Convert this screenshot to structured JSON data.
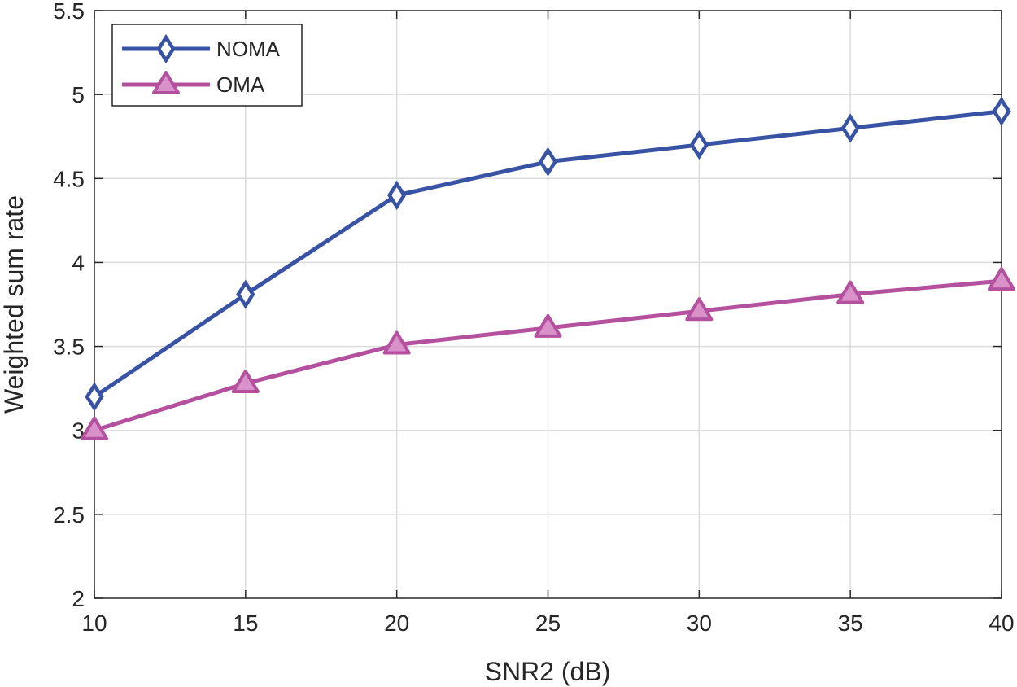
{
  "chart_data": {
    "type": "line",
    "title": "",
    "xlabel": "SNR2 (dB)",
    "ylabel": "Weighted sum rate",
    "x": [
      10,
      15,
      20,
      25,
      30,
      35,
      40
    ],
    "xlim": [
      10,
      40
    ],
    "ylim": [
      2,
      5.5
    ],
    "xticks": [
      10,
      15,
      20,
      25,
      30,
      35,
      40
    ],
    "yticks": [
      2,
      2.5,
      3,
      3.5,
      4,
      4.5,
      5,
      5.5
    ],
    "xtick_labels": [
      "10",
      "15",
      "20",
      "25",
      "30",
      "35",
      "40"
    ],
    "ytick_labels": [
      "2",
      "2.5",
      "3",
      "3.5",
      "4",
      "4.5",
      "5",
      "5.5"
    ],
    "grid": true,
    "legend_position": "top-left",
    "series": [
      {
        "name": "NOMA",
        "values": [
          3.2,
          3.81,
          4.4,
          4.6,
          4.7,
          4.8,
          4.9
        ],
        "color": "#3853a4",
        "marker": "diamond"
      },
      {
        "name": "OMA",
        "values": [
          3.0,
          3.28,
          3.51,
          3.61,
          3.71,
          3.81,
          3.89
        ],
        "color": "#b4519f",
        "marker": "triangle"
      }
    ]
  }
}
